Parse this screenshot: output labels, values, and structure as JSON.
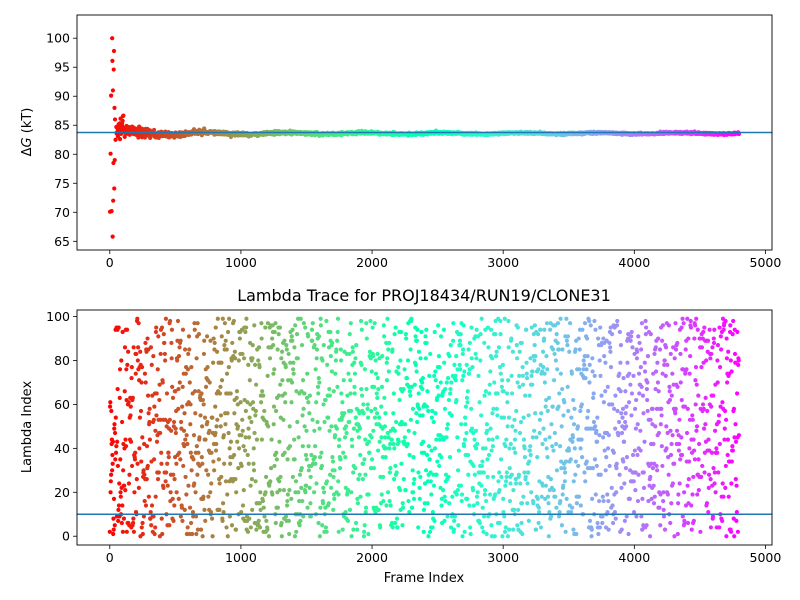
{
  "chart_data": [
    {
      "type": "scatter",
      "title": "",
      "xlabel": "",
      "ylabel_prefix": "Δ",
      "ylabel_var": "G",
      "ylabel_suffix": " (kT)",
      "xlim": [
        -250,
        5050
      ],
      "ylim": [
        63.5,
        104
      ],
      "xticks": [
        0,
        1000,
        2000,
        3000,
        4000,
        5000
      ],
      "yticks": [
        65,
        70,
        75,
        80,
        85,
        90,
        95,
        100
      ],
      "colormap": "rainbow (red early → violet late)",
      "series": [
        {
          "kind": "scatter",
          "x_range": [
            0,
            4800
          ],
          "n_points": 4800,
          "converged_value": 83.6,
          "early_points": [
            {
              "x": 2,
              "y": 70.1
            },
            {
              "x": 6,
              "y": 80.1
            },
            {
              "x": 10,
              "y": 90.1
            },
            {
              "x": 14,
              "y": 70.2
            },
            {
              "x": 18,
              "y": 100
            },
            {
              "x": 20,
              "y": 96.1
            },
            {
              "x": 22,
              "y": 65.8
            },
            {
              "x": 24,
              "y": 91.0
            },
            {
              "x": 26,
              "y": 72.0
            },
            {
              "x": 28,
              "y": 78.5
            },
            {
              "x": 30,
              "y": 94.6
            },
            {
              "x": 32,
              "y": 97.8
            },
            {
              "x": 34,
              "y": 74.1
            },
            {
              "x": 36,
              "y": 88.0
            },
            {
              "x": 38,
              "y": 79.0
            },
            {
              "x": 40,
              "y": 86.0
            },
            {
              "x": 44,
              "y": 82.5
            },
            {
              "x": 50,
              "y": 84.7
            }
          ]
        },
        {
          "kind": "hline",
          "y": 83.75,
          "color": "#1f77b4"
        }
      ]
    },
    {
      "type": "scatter",
      "title": "Lambda Trace for PROJ18434/RUN19/CLONE31",
      "xlabel": "Frame Index",
      "ylabel": "Lambda Index",
      "xlim": [
        -250,
        5050
      ],
      "ylim": [
        -4,
        103
      ],
      "xticks": [
        0,
        1000,
        2000,
        3000,
        4000,
        5000
      ],
      "yticks": [
        0,
        20,
        40,
        60,
        80,
        100
      ],
      "colormap": "rainbow (red early → violet late)",
      "series": [
        {
          "kind": "scatter",
          "x_range": [
            0,
            4800
          ],
          "y_range": [
            0,
            99
          ],
          "n_points": 4800
        },
        {
          "kind": "hline",
          "y": 10,
          "color": "#1f77b4"
        }
      ]
    }
  ],
  "colors": {
    "hline": "#1f77b4",
    "axes": "#000000"
  }
}
